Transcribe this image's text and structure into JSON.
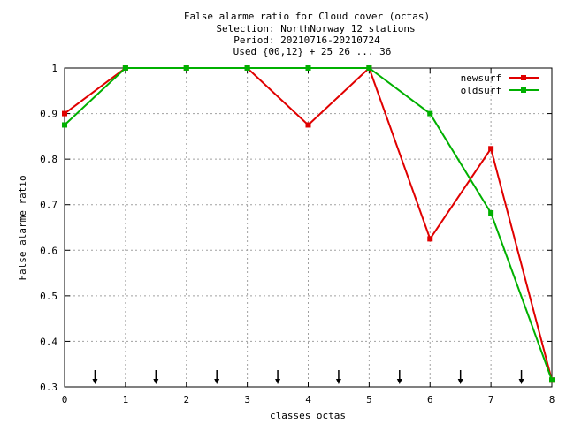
{
  "chart_data": {
    "type": "line",
    "title_lines": [
      "False alarme ratio  for Cloud cover (octas)",
      "Selection: NorthNorway     12 stations",
      "Period: 20210716-20210724",
      "Used {00,12} + 25 26 ... 36"
    ],
    "xlabel": "classes octas",
    "ylabel": "False alarme ratio",
    "xlim": [
      0,
      8
    ],
    "ylim": [
      0.3,
      1
    ],
    "x_ticks": [
      "0",
      "1",
      "2",
      "3",
      "4",
      "5",
      "6",
      "7",
      "8"
    ],
    "y_ticks": [
      "0.3",
      "0.4",
      "0.5",
      "0.6",
      "0.7",
      "0.8",
      "0.9",
      "1"
    ],
    "grid": true,
    "legend_position": "top-right",
    "arrow_markers_x": [
      0.5,
      1.5,
      2.5,
      3.5,
      4.5,
      5.5,
      6.5,
      7.5
    ],
    "series": [
      {
        "name": "newsurf",
        "color": "#e00000",
        "x": [
          0,
          1,
          2,
          3,
          4,
          5,
          6,
          7,
          8
        ],
        "values": [
          0.9,
          1.0,
          1.0,
          1.0,
          0.875,
          1.0,
          0.625,
          0.823,
          0.315
        ]
      },
      {
        "name": "oldsurf",
        "color": "#00b000",
        "x": [
          0,
          1,
          2,
          3,
          4,
          5,
          6,
          7,
          8
        ],
        "values": [
          0.875,
          1.0,
          1.0,
          1.0,
          1.0,
          1.0,
          0.9,
          0.682,
          0.315
        ]
      }
    ]
  }
}
